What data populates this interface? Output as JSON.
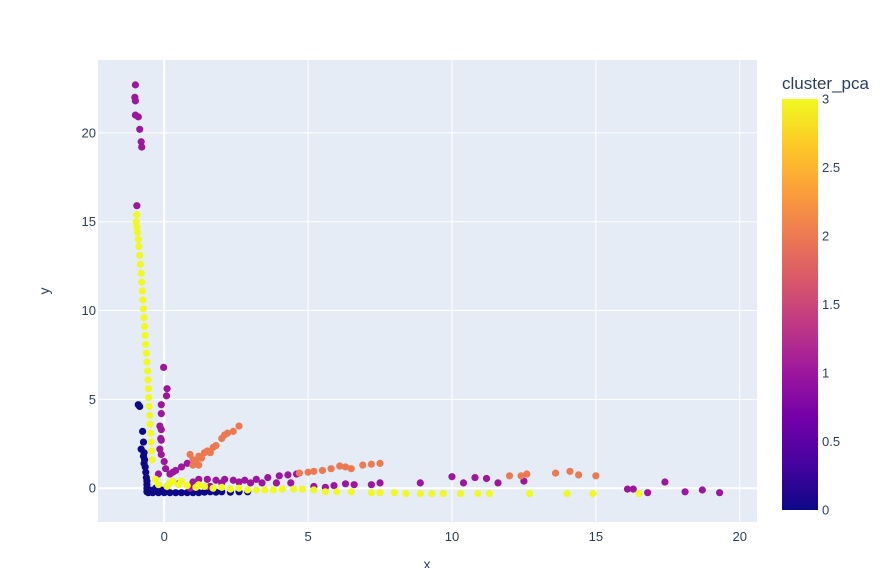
{
  "chart_data": {
    "type": "scatter",
    "title": "",
    "xlabel": "x",
    "ylabel": "y",
    "xlim": [
      -2.3,
      20.6
    ],
    "ylim": [
      -1.9,
      24.1
    ],
    "x_ticks": [
      0,
      5,
      10,
      15,
      20
    ],
    "y_ticks": [
      0,
      5,
      10,
      15,
      20
    ],
    "grid": true,
    "colorbar": {
      "title": "cluster_pca",
      "range": [
        0,
        3
      ],
      "ticks": [
        "0",
        "0.5",
        "1",
        "1.5",
        "2",
        "2.5",
        "3"
      ],
      "colorscale": [
        "#0d0887",
        "#46039f",
        "#7201a8",
        "#9c179e",
        "#bd3786",
        "#d8576b",
        "#ed7953",
        "#fb9f3a",
        "#fdca26",
        "#f0f921"
      ]
    },
    "cluster_colors": {
      "0": "#0d0887",
      "1": "#9c179e",
      "2": "#ed7953",
      "3": "#f0f921"
    },
    "series": [
      {
        "cluster": 0,
        "points": [
          [
            -0.9,
            4.7
          ],
          [
            -0.85,
            4.6
          ],
          [
            -0.75,
            3.2
          ],
          [
            -0.72,
            2.6
          ],
          [
            -0.8,
            2.2
          ],
          [
            -0.7,
            2.0
          ],
          [
            -0.68,
            1.6
          ],
          [
            -0.66,
            1.2
          ],
          [
            -0.64,
            0.9
          ],
          [
            -0.62,
            0.6
          ],
          [
            -0.6,
            0.4
          ],
          [
            -0.6,
            0.2
          ],
          [
            -0.6,
            0.0
          ],
          [
            -0.6,
            -0.2
          ],
          [
            -0.55,
            -0.25
          ],
          [
            -0.4,
            -0.25
          ],
          [
            -0.2,
            -0.25
          ],
          [
            0.0,
            -0.25
          ],
          [
            0.2,
            -0.25
          ],
          [
            0.4,
            -0.25
          ],
          [
            0.6,
            -0.25
          ],
          [
            0.8,
            -0.25
          ],
          [
            1.0,
            -0.25
          ],
          [
            1.2,
            -0.25
          ],
          [
            1.4,
            -0.22
          ],
          [
            1.6,
            -0.2
          ],
          [
            1.8,
            -0.22
          ],
          [
            2.0,
            -0.2
          ],
          [
            2.3,
            -0.22
          ],
          [
            2.6,
            -0.2
          ],
          [
            2.9,
            -0.2
          ],
          [
            -0.5,
            -0.1
          ],
          [
            -0.3,
            0.0
          ],
          [
            -0.1,
            -0.1
          ],
          [
            0.1,
            0.1
          ],
          [
            -0.7,
            1.4
          ],
          [
            -0.72,
            1.8
          ]
        ]
      },
      {
        "cluster": 1,
        "points": [
          [
            -1.0,
            22.7
          ],
          [
            -1.02,
            22.0
          ],
          [
            -1.0,
            21.8
          ],
          [
            -1.0,
            21.0
          ],
          [
            -0.9,
            20.9
          ],
          [
            -0.85,
            20.2
          ],
          [
            -0.8,
            19.5
          ],
          [
            -0.78,
            19.2
          ],
          [
            -0.95,
            15.9
          ],
          [
            -0.02,
            6.8
          ],
          [
            0.1,
            5.6
          ],
          [
            0.08,
            5.2
          ],
          [
            -0.1,
            4.7
          ],
          [
            -0.1,
            4.2
          ],
          [
            -0.15,
            3.5
          ],
          [
            -0.1,
            3.3
          ],
          [
            -0.12,
            2.8
          ],
          [
            -0.1,
            2.7
          ],
          [
            -0.15,
            2.2
          ],
          [
            -0.1,
            1.9
          ],
          [
            0.0,
            1.5
          ],
          [
            0.05,
            1.1
          ],
          [
            -0.2,
            0.8
          ],
          [
            0.2,
            0.8
          ],
          [
            0.4,
            1.0
          ],
          [
            0.6,
            1.2
          ],
          [
            0.8,
            1.4
          ],
          [
            0.3,
            0.9
          ],
          [
            1.2,
            0.5
          ],
          [
            1.5,
            0.5
          ],
          [
            1.8,
            0.45
          ],
          [
            2.1,
            0.5
          ],
          [
            2.4,
            0.45
          ],
          [
            2.8,
            0.45
          ],
          [
            3.2,
            0.5
          ],
          [
            3.6,
            0.6
          ],
          [
            4.0,
            0.7
          ],
          [
            4.3,
            0.75
          ],
          [
            4.6,
            0.8
          ],
          [
            3.0,
            0.3
          ],
          [
            3.4,
            0.3
          ],
          [
            3.9,
            0.3
          ],
          [
            4.4,
            0.3
          ],
          [
            5.2,
            0.1
          ],
          [
            5.6,
            0.05
          ],
          [
            5.9,
            0.15
          ],
          [
            6.3,
            0.25
          ],
          [
            6.6,
            0.2
          ],
          [
            7.2,
            0.2
          ],
          [
            7.5,
            0.3
          ],
          [
            8.9,
            0.3
          ],
          [
            10.0,
            0.65
          ],
          [
            10.4,
            0.3
          ],
          [
            10.8,
            0.6
          ],
          [
            11.2,
            0.55
          ],
          [
            11.6,
            0.3
          ],
          [
            12.5,
            0.4
          ],
          [
            16.1,
            -0.05
          ],
          [
            16.3,
            -0.05
          ],
          [
            16.8,
            -0.25
          ],
          [
            17.4,
            0.35
          ],
          [
            18.1,
            -0.2
          ],
          [
            18.7,
            -0.1
          ],
          [
            19.3,
            -0.25
          ],
          [
            0.5,
            0.25
          ],
          [
            1.0,
            0.35
          ],
          [
            2.0,
            0.3
          ],
          [
            2.6,
            0.35
          ],
          [
            0.9,
            0.0
          ],
          [
            1.6,
            0.1
          ]
        ]
      },
      {
        "cluster": 2,
        "points": [
          [
            0.9,
            1.9
          ],
          [
            1.0,
            1.6
          ],
          [
            1.1,
            1.5
          ],
          [
            1.2,
            1.8
          ],
          [
            1.3,
            1.7
          ],
          [
            1.4,
            2.0
          ],
          [
            1.5,
            2.1
          ],
          [
            1.6,
            2.0
          ],
          [
            1.7,
            2.3
          ],
          [
            1.8,
            2.4
          ],
          [
            1.2,
            1.3
          ],
          [
            1.0,
            1.3
          ],
          [
            2.0,
            2.8
          ],
          [
            2.1,
            3.0
          ],
          [
            2.2,
            3.1
          ],
          [
            2.4,
            3.2
          ],
          [
            2.6,
            3.5
          ],
          [
            4.7,
            0.85
          ],
          [
            5.0,
            0.9
          ],
          [
            5.2,
            0.95
          ],
          [
            5.5,
            1.0
          ],
          [
            5.8,
            1.1
          ],
          [
            6.1,
            1.25
          ],
          [
            6.3,
            1.2
          ],
          [
            6.5,
            1.1
          ],
          [
            6.9,
            1.3
          ],
          [
            7.2,
            1.35
          ],
          [
            7.5,
            1.4
          ],
          [
            12.0,
            0.7
          ],
          [
            12.4,
            0.7
          ],
          [
            12.6,
            0.8
          ],
          [
            13.6,
            0.85
          ],
          [
            14.1,
            0.95
          ],
          [
            14.4,
            0.75
          ],
          [
            15.0,
            0.7
          ]
        ]
      },
      {
        "cluster": 3,
        "points": [
          [
            -0.95,
            15.4
          ],
          [
            -0.97,
            15.0
          ],
          [
            -0.95,
            14.7
          ],
          [
            -0.93,
            14.4
          ],
          [
            -0.9,
            14.0
          ],
          [
            -0.88,
            13.6
          ],
          [
            -0.85,
            13.1
          ],
          [
            -0.83,
            12.6
          ],
          [
            -0.8,
            12.1
          ],
          [
            -0.78,
            11.6
          ],
          [
            -0.76,
            11.1
          ],
          [
            -0.74,
            10.6
          ],
          [
            -0.72,
            10.1
          ],
          [
            -0.7,
            9.6
          ],
          [
            -0.68,
            9.1
          ],
          [
            -0.66,
            8.6
          ],
          [
            -0.64,
            8.1
          ],
          [
            -0.62,
            7.6
          ],
          [
            -0.6,
            7.1
          ],
          [
            -0.58,
            6.6
          ],
          [
            -0.56,
            6.1
          ],
          [
            -0.55,
            5.6
          ],
          [
            -0.54,
            5.1
          ],
          [
            -0.52,
            4.6
          ],
          [
            -0.5,
            4.1
          ],
          [
            -0.49,
            3.6
          ],
          [
            -0.47,
            3.1
          ],
          [
            -0.46,
            2.6
          ],
          [
            -0.44,
            2.1
          ],
          [
            -0.42,
            1.6
          ],
          [
            -0.3,
            0.5
          ],
          [
            -0.2,
            0.2
          ],
          [
            0.1,
            0.1
          ],
          [
            0.3,
            0.4
          ],
          [
            0.5,
            0.2
          ],
          [
            0.8,
            0.15
          ],
          [
            1.1,
            0.05
          ],
          [
            1.4,
            0.1
          ],
          [
            1.7,
            0.0
          ],
          [
            2.0,
            0.05
          ],
          [
            2.3,
            -0.05
          ],
          [
            2.6,
            0.0
          ],
          [
            2.9,
            -0.1
          ],
          [
            3.2,
            -0.1
          ],
          [
            3.5,
            -0.1
          ],
          [
            3.8,
            -0.1
          ],
          [
            4.1,
            -0.05
          ],
          [
            4.5,
            -0.05
          ],
          [
            4.8,
            -0.05
          ],
          [
            5.2,
            -0.1
          ],
          [
            5.6,
            -0.2
          ],
          [
            6.0,
            -0.2
          ],
          [
            6.5,
            -0.2
          ],
          [
            7.2,
            -0.25
          ],
          [
            7.5,
            -0.25
          ],
          [
            8.0,
            -0.25
          ],
          [
            8.4,
            -0.3
          ],
          [
            8.9,
            -0.3
          ],
          [
            9.3,
            -0.3
          ],
          [
            9.7,
            -0.3
          ],
          [
            10.3,
            -0.3
          ],
          [
            10.9,
            -0.3
          ],
          [
            11.3,
            -0.3
          ],
          [
            12.7,
            -0.3
          ],
          [
            14.0,
            -0.3
          ],
          [
            14.9,
            -0.3
          ],
          [
            16.5,
            -0.3
          ],
          [
            0.2,
            0.3
          ],
          [
            0.6,
            0.4
          ],
          [
            1.2,
            0.2
          ]
        ]
      }
    ]
  }
}
